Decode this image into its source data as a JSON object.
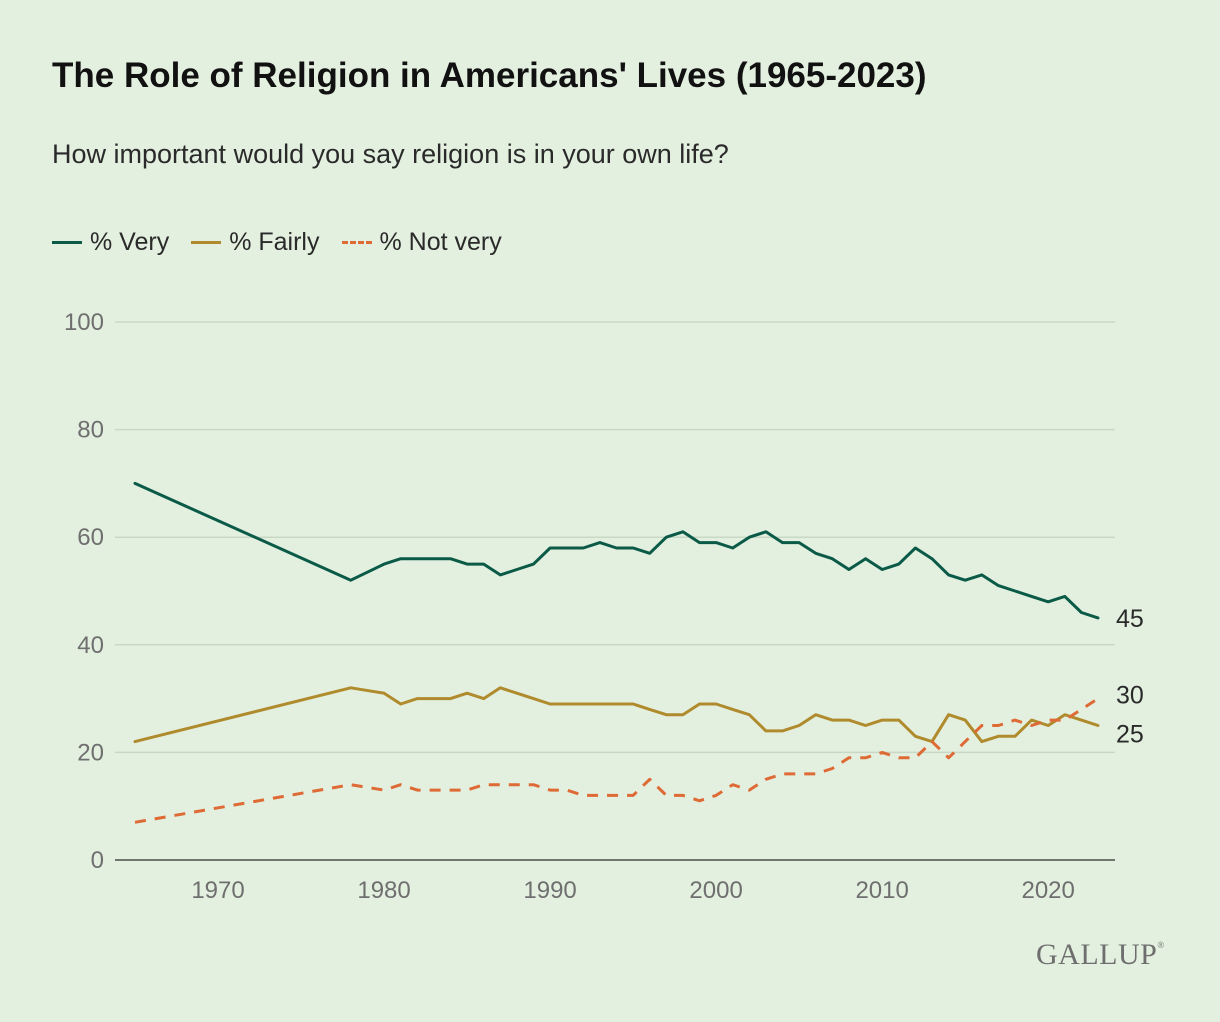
{
  "title": "The Role of Religion in Americans' Lives (1965-2023)",
  "subtitle": "How important would you say religion is in your own life?",
  "logo": {
    "text": "GALLUP",
    "mark": "®"
  },
  "colors": {
    "background": "#e3f0df",
    "very": "#0b5a48",
    "fairly": "#b08b2d",
    "not_very": "#de6a35",
    "grid": "#c9d8c4",
    "axis_text": "#6f6f6f",
    "label_text": "#2a2a2a"
  },
  "chart_data": {
    "type": "line",
    "title": "The Role of Religion in Americans' Lives (1965-2023)",
    "subtitle": "How important would you say religion is in your own life?",
    "xlabel": "",
    "ylabel": "",
    "xlim": [
      1965,
      2023
    ],
    "ylim": [
      0,
      100
    ],
    "x_ticks": [
      1970,
      1980,
      1990,
      2000,
      2010,
      2020
    ],
    "x_tick_labels": [
      "1970",
      "1980",
      "1990",
      "2000",
      "2010",
      "2020"
    ],
    "y_ticks": [
      0,
      20,
      40,
      60,
      80,
      100
    ],
    "y_tick_labels": [
      "0",
      "20",
      "40",
      "60",
      "80",
      "100"
    ],
    "grid": true,
    "legend_position": "top-left",
    "x": [
      1965,
      1978,
      1980,
      1981,
      1982,
      1983,
      1984,
      1985,
      1986,
      1987,
      1988,
      1989,
      1990,
      1991,
      1992,
      1993,
      1994,
      1995,
      1996,
      1997,
      1998,
      1999,
      2000,
      2001,
      2002,
      2003,
      2004,
      2005,
      2006,
      2007,
      2008,
      2009,
      2010,
      2011,
      2012,
      2013,
      2014,
      2015,
      2016,
      2017,
      2018,
      2019,
      2020,
      2021,
      2022,
      2023
    ],
    "series": [
      {
        "name": "% Very",
        "style": "solid",
        "end_label": "45",
        "values": [
          70,
          52,
          55,
          56,
          56,
          56,
          56,
          55,
          55,
          53,
          54,
          55,
          58,
          58,
          58,
          59,
          58,
          58,
          57,
          60,
          61,
          59,
          59,
          58,
          60,
          61,
          59,
          59,
          57,
          56,
          54,
          56,
          54,
          55,
          58,
          56,
          53,
          52,
          53,
          51,
          50,
          49,
          48,
          49,
          46,
          45
        ]
      },
      {
        "name": "% Fairly",
        "style": "solid",
        "end_label": "25",
        "values": [
          22,
          32,
          31,
          29,
          30,
          30,
          30,
          31,
          30,
          32,
          31,
          30,
          29,
          29,
          29,
          29,
          29,
          29,
          28,
          27,
          27,
          29,
          29,
          28,
          27,
          24,
          24,
          25,
          27,
          26,
          26,
          25,
          26,
          26,
          23,
          22,
          27,
          26,
          22,
          23,
          23,
          26,
          25,
          27,
          26,
          25
        ]
      },
      {
        "name": "% Not very",
        "style": "dashed",
        "end_label": "30",
        "values": [
          7,
          14,
          13,
          14,
          13,
          13,
          13,
          13,
          14,
          14,
          14,
          14,
          13,
          13,
          12,
          12,
          12,
          12,
          15,
          12,
          12,
          11,
          12,
          14,
          13,
          15,
          16,
          16,
          16,
          17,
          19,
          19,
          20,
          19,
          19,
          22,
          19,
          22,
          25,
          25,
          26,
          25,
          26,
          26,
          28,
          30
        ]
      }
    ]
  }
}
